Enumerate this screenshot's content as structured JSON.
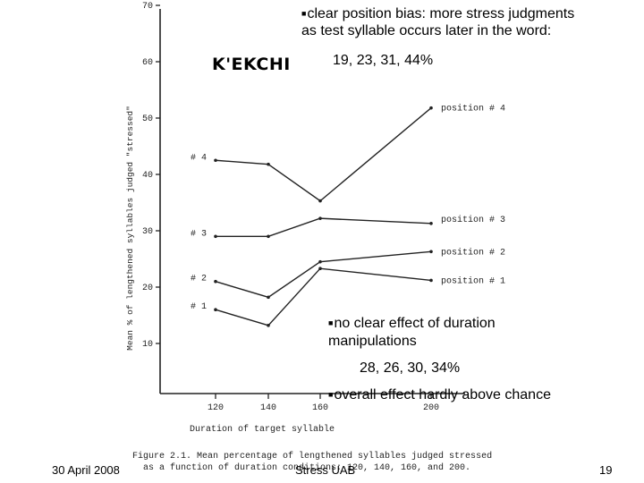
{
  "slide": {
    "bullet_1_line1": "clear position bias: more stress judgments",
    "bullet_1_line2": "as test syllable occurs later in the word:",
    "bullet_1_values": "19, 23, 31, 44%",
    "bullet_2_line1": "no clear effect of duration",
    "bullet_2_line2": "manipulations",
    "bullet_2_values": "28, 26, 30, 34%",
    "bullet_3": "overall effect hardly above chance",
    "bullet_marker": "■",
    "footer_date": "30 April 2008",
    "footer_center": "Stress UAB",
    "footer_page": "19"
  },
  "chart_data": {
    "type": "line",
    "title": "K'EKCHI",
    "xlabel": "Duration of target syllable",
    "ylabel": "Mean % of lengthened syllables judged \"stressed\"",
    "x": [
      120,
      140,
      160,
      200
    ],
    "x_ticks": [
      "120",
      "140",
      "160",
      "200"
    ],
    "y_ticks": [
      "10",
      "20",
      "30",
      "40",
      "50",
      "60",
      "70"
    ],
    "ylim": [
      5,
      70
    ],
    "grid": false,
    "series": [
      {
        "name": "position # 4",
        "left_label": "# 4",
        "values": [
          42.5,
          41.8,
          35.3,
          51.8
        ]
      },
      {
        "name": "position # 3",
        "left_label": "# 3",
        "values": [
          29.0,
          29.0,
          32.2,
          31.3
        ]
      },
      {
        "name": "position # 2",
        "left_label": "# 2",
        "values": [
          21.0,
          18.2,
          24.5,
          26.3
        ]
      },
      {
        "name": "position # 1",
        "left_label": "# 1",
        "values": [
          16.0,
          13.2,
          23.3,
          21.2
        ]
      }
    ],
    "caption_line1": "Figure 2.1.  Mean percentage of lengthened syllables judged stressed",
    "caption_line2": "as a function of duration conditions: 120, 140, 160, and 200."
  }
}
